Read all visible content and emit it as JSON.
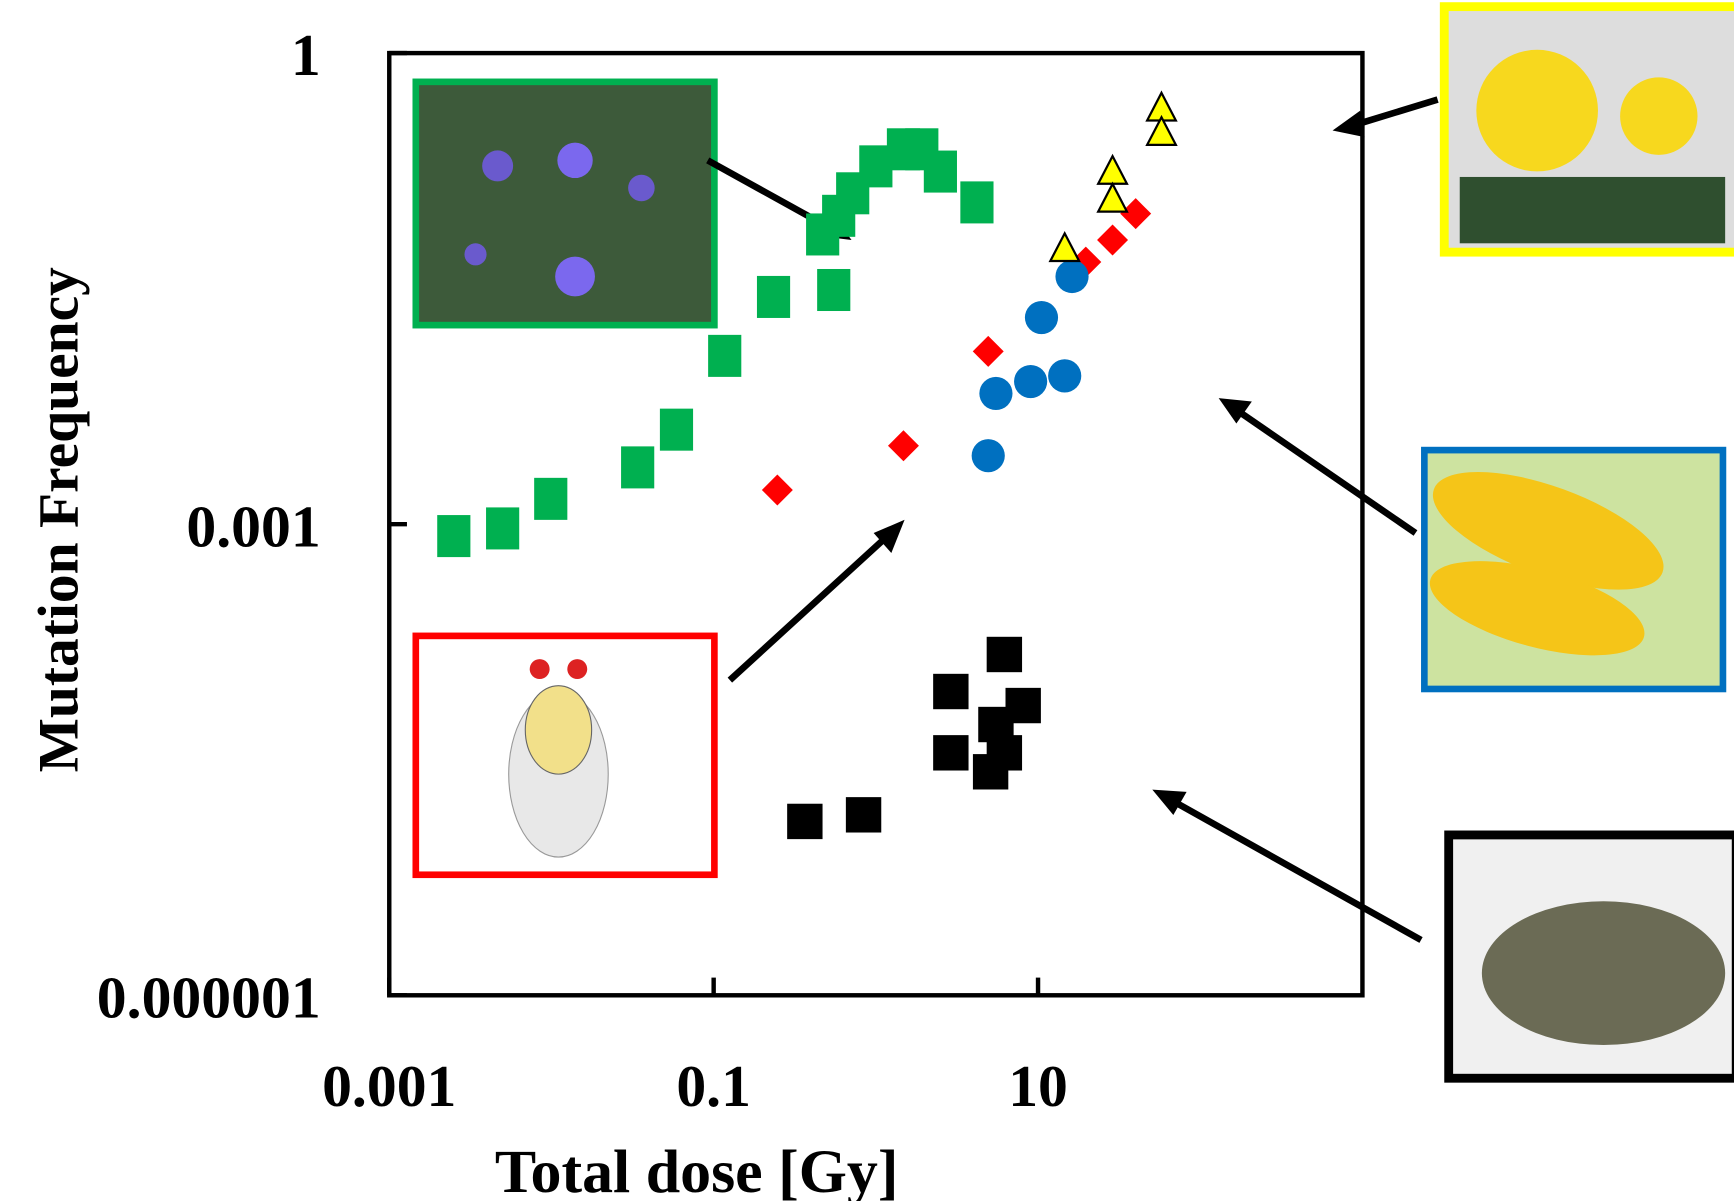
{
  "chart_data": {
    "type": "scatter",
    "log_x": true,
    "log_y": true,
    "x_label": "Total dose [Gy]",
    "y_label": "Mutation Frequency",
    "xlim": [
      0.001,
      1000
    ],
    "ylim": [
      1e-06,
      1
    ],
    "xticks": [
      0.001,
      0.1,
      10
    ],
    "yticks": [
      1e-06,
      0.001,
      1
    ],
    "series": [
      {
        "color": "#00b050",
        "marker": "tall-square",
        "x": [
          0.0025,
          0.005,
          0.0099,
          0.034,
          0.059,
          0.117,
          0.234,
          0.55,
          0.47,
          0.59,
          0.72,
          1.0,
          1.48,
          1.92,
          2.5,
          4.2
        ],
        "values": [
          0.00084,
          0.00094,
          0.00145,
          0.0023,
          0.004,
          0.0118,
          0.028,
          0.031,
          0.07,
          0.092,
          0.128,
          0.19,
          0.244,
          0.244,
          0.176,
          0.112
        ]
      },
      {
        "color": "#ff0000",
        "marker": "diamond",
        "x": [
          0.247,
          1.48,
          4.93,
          19.7,
          28.8,
          40
        ],
        "values": [
          0.00165,
          0.00316,
          0.0126,
          0.0467,
          0.0645,
          0.095
        ]
      },
      {
        "color": "#0070c0",
        "marker": "circle",
        "x": [
          4.93,
          5.5,
          9.0,
          14.6,
          10.5,
          16.2
        ],
        "values": [
          0.00273,
          0.0068,
          0.0081,
          0.0088,
          0.0207,
          0.0378
        ]
      },
      {
        "color": "#ffff00",
        "marker": "triangle",
        "x": [
          14.6,
          28.8,
          28.8,
          57.7,
          57.7
        ],
        "values": [
          0.0567,
          0.176,
          0.117,
          0.445,
          0.311
        ]
      },
      {
        "color": "#000000",
        "marker": "square",
        "x": [
          0.365,
          0.84,
          2.9,
          2.9,
          6.2,
          8.1,
          5.5,
          6.2,
          5.1
        ],
        "values": [
          1.28e-05,
          1.41e-05,
          8.6e-05,
          3.5e-05,
          0.000148,
          7e-05,
          5.3e-05,
          3.5e-05,
          2.65e-05
        ]
      }
    ]
  }
}
